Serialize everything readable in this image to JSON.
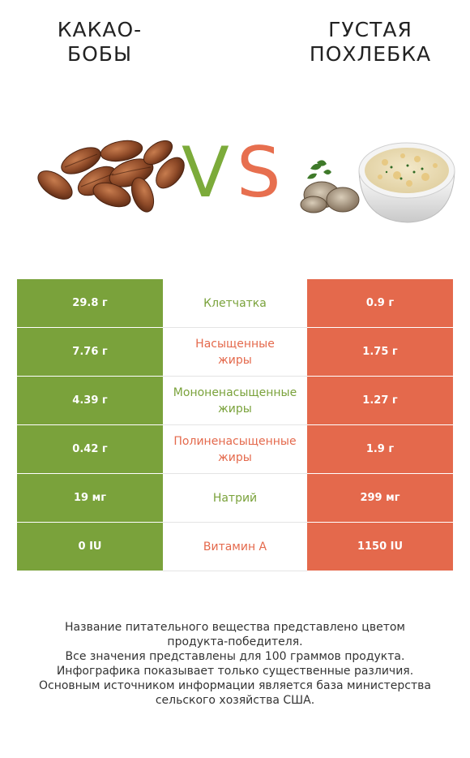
{
  "titles": {
    "left": "КАКАО-\nБОБЫ",
    "right": "ГУСТАЯ\nПОХЛЕБКА"
  },
  "vs": {
    "v": "V",
    "s": "S"
  },
  "colors": {
    "green": "#7aa23b",
    "red": "#e4694c"
  },
  "rows": [
    {
      "left": "29.8 г",
      "name": "Клетчатка",
      "right": "0.9 г",
      "winner": "left"
    },
    {
      "left": "7.76 г",
      "name": "Насыщенные\nжиры",
      "right": "1.75 г",
      "winner": "right"
    },
    {
      "left": "4.39 г",
      "name": "Мононенасыщенные\nжиры",
      "right": "1.27 г",
      "winner": "left"
    },
    {
      "left": "0.42 г",
      "name": "Полиненасыщенные\nжиры",
      "right": "1.9 г",
      "winner": "right"
    },
    {
      "left": "19 мг",
      "name": "Натрий",
      "right": "299 мг",
      "winner": "left"
    },
    {
      "left": "0 IU",
      "name": "Витамин A",
      "right": "1150 IU",
      "winner": "right"
    }
  ],
  "footer": [
    "Название питательного вещества представлено цветом",
    "продукта-победителя.",
    "Все значения представлены для 100 граммов продукта.",
    "Инфографика показывает только существенные различия.",
    "Основным источником информации является база министерства",
    "сельского хозяйства США."
  ]
}
